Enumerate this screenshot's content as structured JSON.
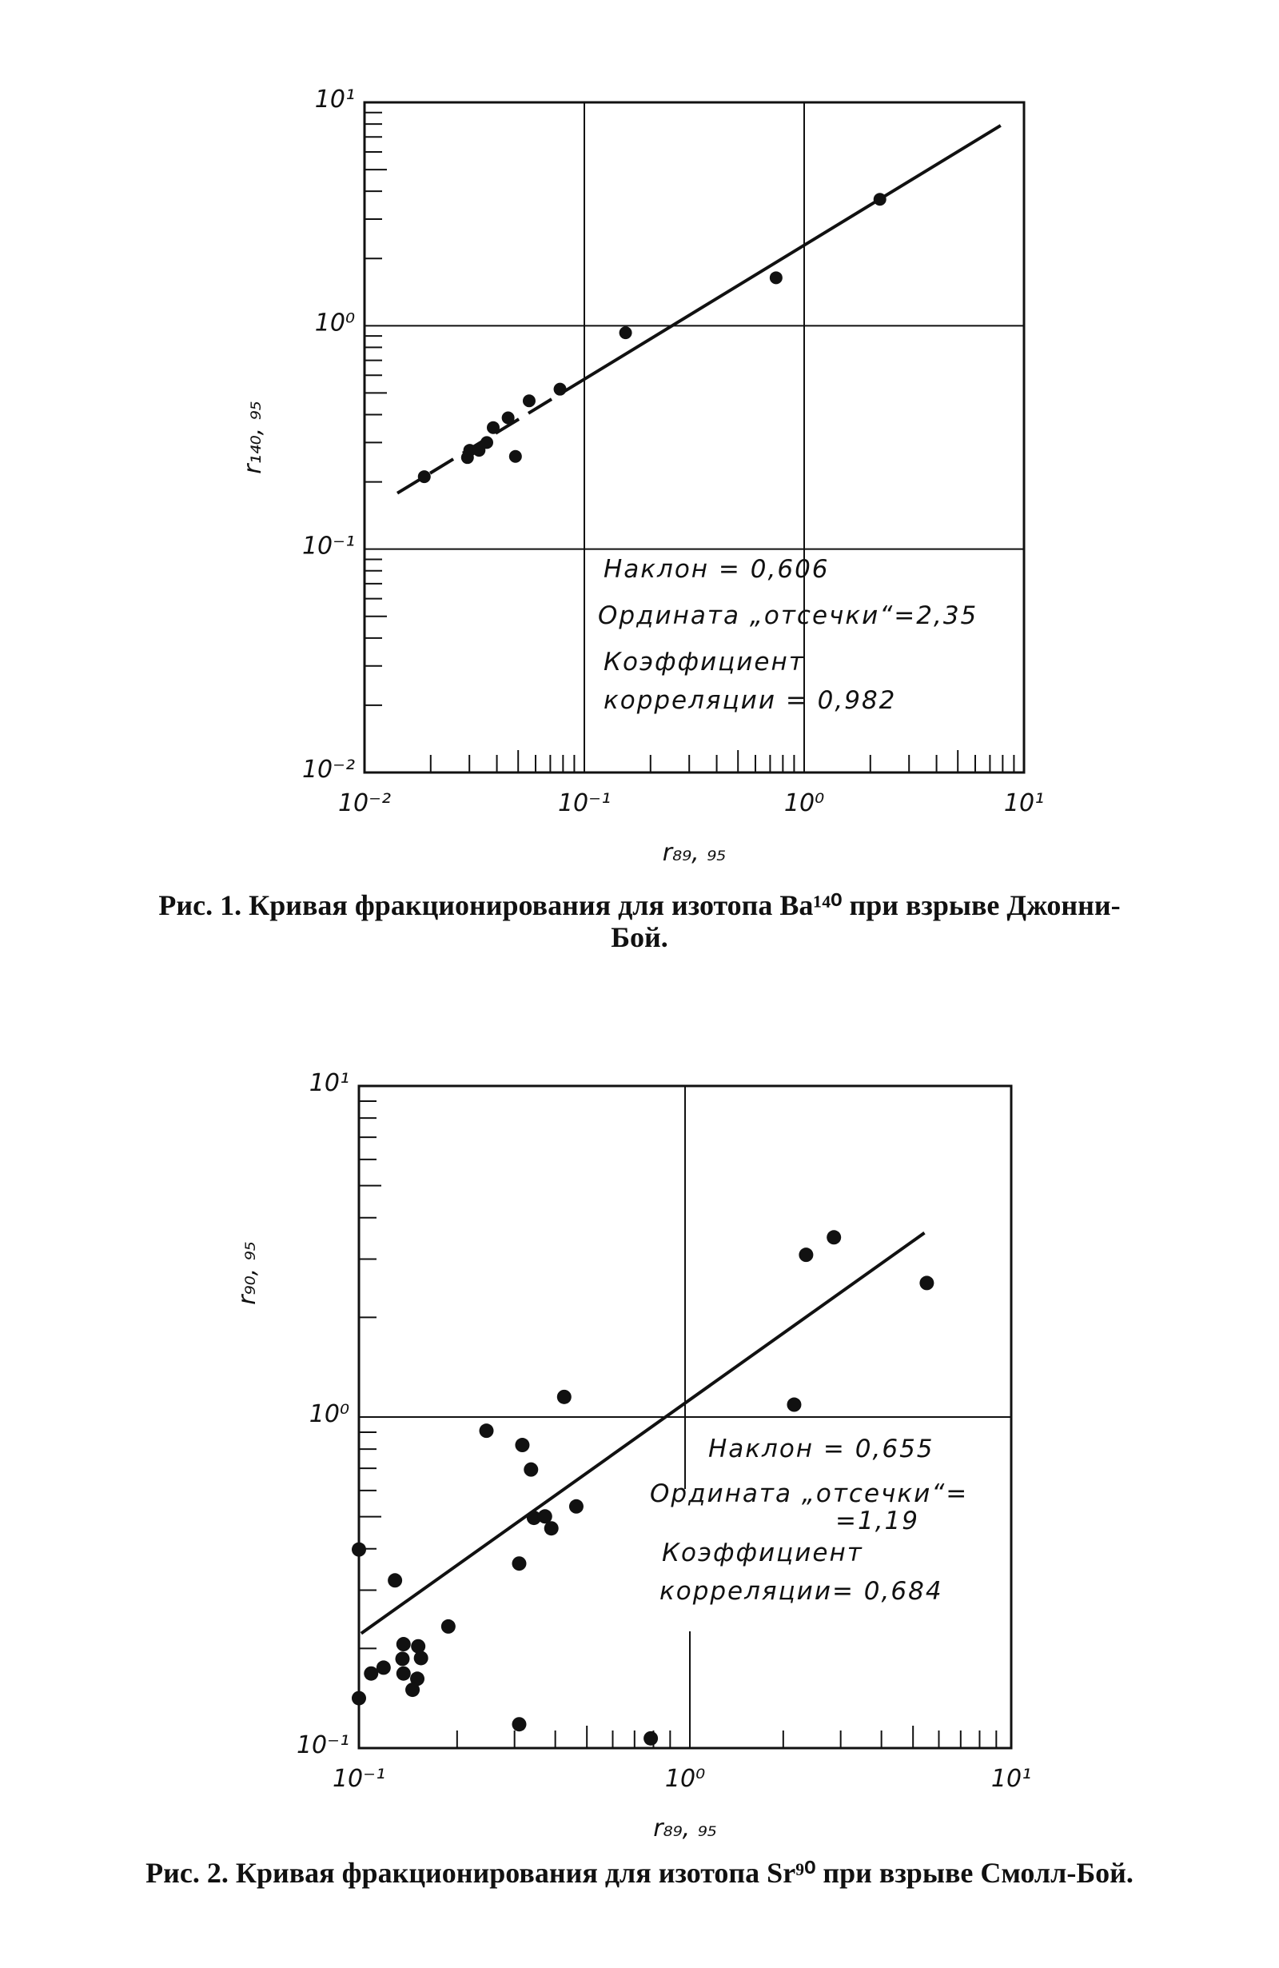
{
  "chart_data": [
    {
      "type": "scatter",
      "xscale": "log",
      "yscale": "log",
      "xlim": [
        0.01,
        10
      ],
      "ylim": [
        0.01,
        10
      ],
      "grid": "decades",
      "xlabel": "r₈₉, ₉₅",
      "ylabel": "r₁₄₀, ₉₅",
      "xticks": [
        "10⁻²",
        "10⁻¹",
        "10⁰",
        "10¹"
      ],
      "yticks": [
        "10⁻²",
        "10⁻¹",
        "10⁰",
        "10¹"
      ],
      "points": [
        [
          0.0187,
          0.211
        ],
        [
          0.0294,
          0.257
        ],
        [
          0.0301,
          0.277
        ],
        [
          0.0332,
          0.277
        ],
        [
          0.036,
          0.3
        ],
        [
          0.0385,
          0.35
        ],
        [
          0.045,
          0.387
        ],
        [
          0.0486,
          0.26
        ],
        [
          0.0561,
          0.461
        ],
        [
          0.0775,
          0.52
        ],
        [
          0.154,
          0.93
        ],
        [
          0.745,
          1.64
        ],
        [
          2.21,
          3.68
        ]
      ],
      "fit_line": {
        "x": [
          0.0141,
          7.83
        ],
        "y": [
          0.178,
          7.88
        ],
        "dashed_below_x": 0.1
      },
      "annotations": [
        "Наклон = 0,606",
        "Ордината „отсечки“=2,35",
        "Коэффициент",
        "корреляции = 0,982"
      ],
      "caption": {
        "prefix": "Рис. 1.",
        "text": "Кривая фракционирования для изотопа Ba¹⁴⁰ при взрыве Джонни-",
        "text2": "Бой."
      }
    },
    {
      "type": "scatter",
      "xscale": "log",
      "yscale": "log",
      "xlim": [
        0.1,
        10
      ],
      "ylim": [
        0.1,
        10
      ],
      "grid": "decades",
      "xlabel": "r₈₉, ₉₅",
      "ylabel": "r₉₀, ₉₅",
      "xticks": [
        "10⁻¹",
        "10⁰",
        "10¹"
      ],
      "yticks": [
        "10⁻¹",
        "10⁰",
        "10¹"
      ],
      "points": [
        [
          0.1,
          0.398
        ],
        [
          0.1,
          0.1415
        ],
        [
          0.109,
          0.168
        ],
        [
          0.119,
          0.175
        ],
        [
          0.129,
          0.321
        ],
        [
          0.137,
          0.206
        ],
        [
          0.152,
          0.203
        ],
        [
          0.155,
          0.187
        ],
        [
          0.136,
          0.186
        ],
        [
          0.137,
          0.168
        ],
        [
          0.151,
          0.162
        ],
        [
          0.146,
          0.15
        ],
        [
          0.188,
          0.233
        ],
        [
          0.246,
          0.909
        ],
        [
          0.31,
          0.361
        ],
        [
          0.31,
          0.118
        ],
        [
          0.317,
          0.823
        ],
        [
          0.337,
          0.694
        ],
        [
          0.344,
          0.496
        ],
        [
          0.372,
          0.501
        ],
        [
          0.389,
          0.461
        ],
        [
          0.426,
          1.15
        ],
        [
          0.464,
          0.537
        ],
        [
          0.785,
          0.107
        ],
        [
          2.16,
          1.09
        ],
        [
          2.35,
          3.09
        ],
        [
          2.86,
          3.49
        ],
        [
          5.51,
          2.54
        ]
      ],
      "fit_line": {
        "x": [
          0.1016,
          5.42
        ],
        "y": [
          0.222,
          3.6
        ]
      },
      "annotations": [
        "Наклон = 0,655",
        "Ордината „отсечки“=",
        "=1,19",
        "Коэффициент",
        "корреляции= 0,684"
      ],
      "caption": {
        "prefix": "Рис. 2.",
        "text": "Кривая фракционирования для изотопа Sr⁹⁰ при взрыве Смолл-Бой."
      }
    }
  ]
}
